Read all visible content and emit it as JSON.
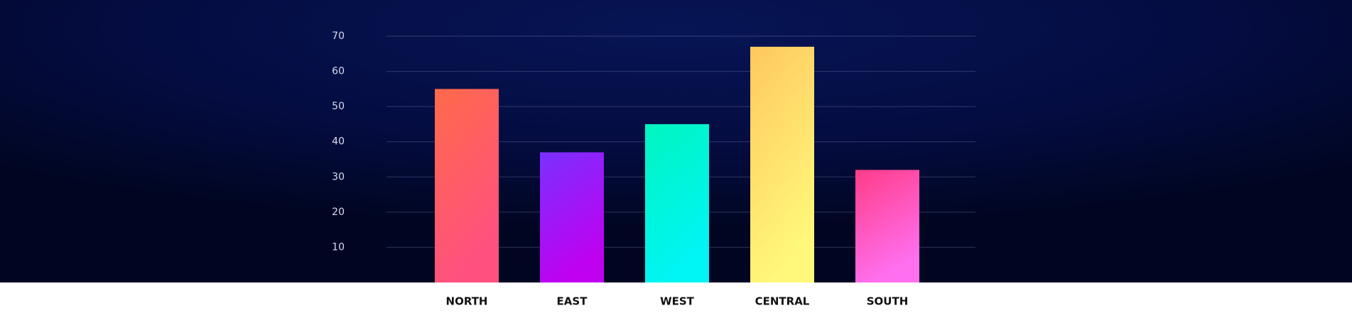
{
  "chart_data": {
    "type": "bar",
    "categories": [
      "NORTH",
      "EAST",
      "WEST",
      "CENTRAL",
      "SOUTH"
    ],
    "values": [
      55,
      37,
      45,
      67,
      32
    ],
    "gradients": [
      [
        "#ff6a4a",
        "#ff5080"
      ],
      [
        "#7a30ff",
        "#c000f0"
      ],
      [
        "#00f5c0",
        "#00f5f5"
      ],
      [
        "#ffc860",
        "#fff87a"
      ],
      [
        "#ff3c88",
        "#ff70f0"
      ]
    ],
    "ylim": [
      0,
      70
    ],
    "yticks": [
      10,
      20,
      30,
      40,
      50,
      60,
      70
    ],
    "grid": true
  }
}
